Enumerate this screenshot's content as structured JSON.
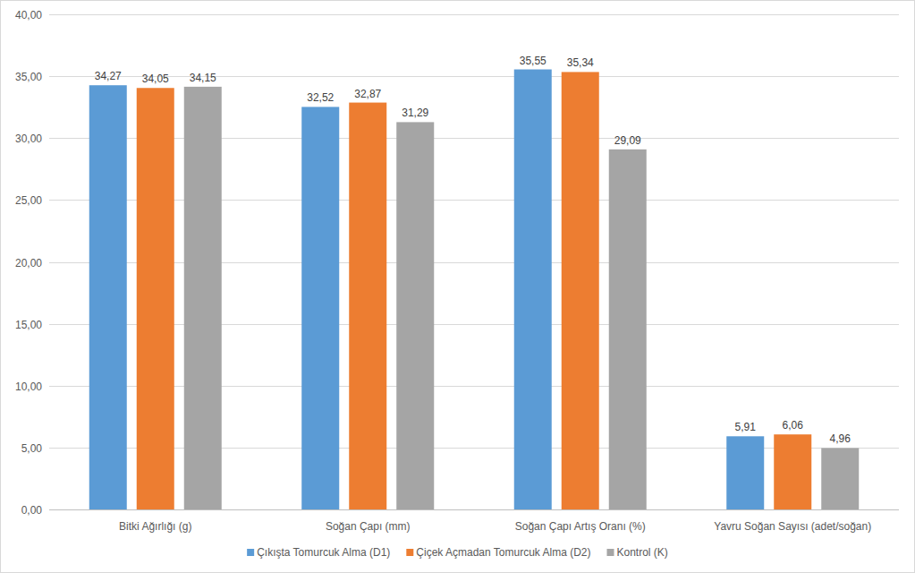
{
  "chart_data": {
    "type": "bar",
    "categories": [
      "Bitki Ağırlığı (g)",
      "Soğan Çapı (mm)",
      "Soğan Çapı Artış Oranı (%)",
      "Yavru Soğan Sayısı (adet/soğan)"
    ],
    "series": [
      {
        "name": "Çıkışta Tomurcuk Alma (D1)",
        "color": "#5b9bd5",
        "values": [
          34.27,
          32.52,
          35.55,
          5.91
        ],
        "value_labels": [
          "34,27",
          "32,52",
          "35,55",
          "5,91"
        ]
      },
      {
        "name": "Çiçek Açmadan Tomurcuk Alma (D2)",
        "color": "#ed7d31",
        "values": [
          34.05,
          32.87,
          35.34,
          6.06
        ],
        "value_labels": [
          "34,05",
          "32,87",
          "35,34",
          "6,06"
        ]
      },
      {
        "name": "Kontrol (K)",
        "color": "#a5a5a5",
        "values": [
          34.15,
          31.29,
          29.09,
          4.96
        ],
        "value_labels": [
          "34,15",
          "31,29",
          "29,09",
          "4,96"
        ]
      }
    ],
    "ylim": [
      0,
      40
    ],
    "yticks": [
      {
        "value": 0,
        "label": "0,00"
      },
      {
        "value": 5,
        "label": "5,00"
      },
      {
        "value": 10,
        "label": "10,00"
      },
      {
        "value": 15,
        "label": "15,00"
      },
      {
        "value": 20,
        "label": "20,00"
      },
      {
        "value": 25,
        "label": "25,00"
      },
      {
        "value": 30,
        "label": "30,00"
      },
      {
        "value": 35,
        "label": "35,00"
      },
      {
        "value": 40,
        "label": "40,00"
      }
    ],
    "grid": true,
    "legend": "bottom",
    "data_labels": true
  }
}
